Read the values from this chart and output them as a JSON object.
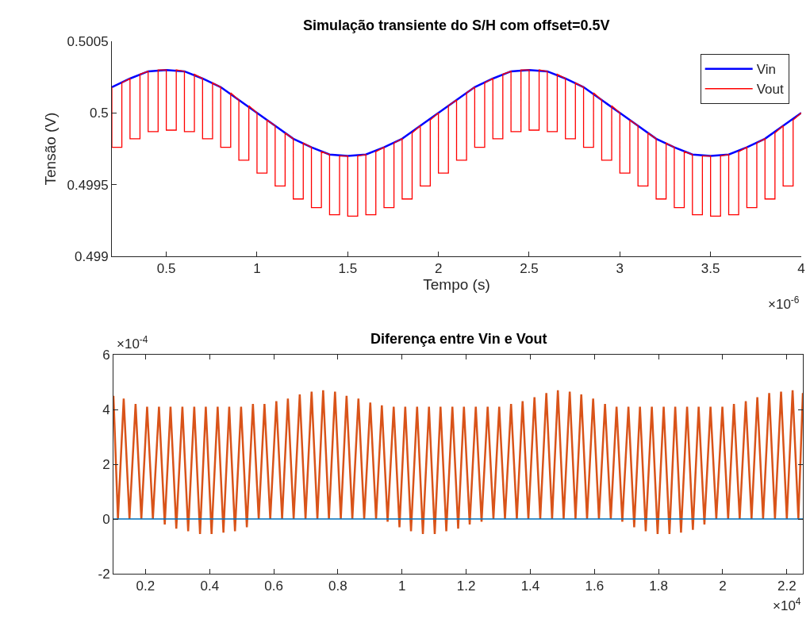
{
  "chart_data": [
    {
      "type": "line",
      "title": "Simulação transiente do S/H com offset=0.5V",
      "xlabel": "Tempo (s)",
      "ylabel": "Tensão (V)",
      "xlim": [
        0.2,
        4
      ],
      "xticks": [
        0.5,
        1,
        1.5,
        2,
        2.5,
        3,
        3.5,
        4
      ],
      "ylim": [
        0.499,
        0.5005
      ],
      "yticks": [
        0.499,
        0.4995,
        0.5,
        0.5005
      ],
      "legend": "top right",
      "annotations": [
        "×10$^{-6}$"
      ],
      "series": [
        {
          "name": "Vin",
          "color": "#0000ff",
          "x": [
            0.2,
            0.3,
            0.4,
            0.5,
            0.6,
            0.7,
            0.8,
            0.9,
            1.0,
            1.1,
            1.2,
            1.3,
            1.4,
            1.5,
            1.6,
            1.7,
            1.8,
            1.9,
            2.0,
            2.1,
            2.2,
            2.3,
            2.4,
            2.5,
            2.6,
            2.7,
            2.8,
            2.9,
            3.0,
            3.1,
            3.2,
            3.3,
            3.4,
            3.5,
            3.6,
            3.7,
            3.8,
            3.9,
            4.0
          ],
          "values": [
            0.50018,
            0.50024,
            0.50029,
            0.5003,
            0.50029,
            0.50024,
            0.50018,
            0.50009,
            0.5,
            0.49991,
            0.49982,
            0.49976,
            0.49971,
            0.4997,
            0.49971,
            0.49976,
            0.49982,
            0.49991,
            0.5,
            0.50009,
            0.50018,
            0.50024,
            0.50029,
            0.5003,
            0.50029,
            0.50024,
            0.50018,
            0.50009,
            0.5,
            0.49991,
            0.49982,
            0.49976,
            0.49971,
            0.4997,
            0.49971,
            0.49976,
            0.49982,
            0.49991,
            0.5
          ]
        },
        {
          "name": "Vout",
          "color": "#ff0000",
          "x": [
            0.2,
            0.2,
            0.255,
            0.255,
            0.3,
            0.3,
            0.355,
            0.355,
            0.4,
            0.4,
            0.455,
            0.455,
            0.5,
            0.5,
            0.555,
            0.555,
            0.6,
            0.6,
            0.655,
            0.655,
            0.7,
            0.7,
            0.755,
            0.755,
            0.8,
            0.8,
            0.855,
            0.855,
            0.9,
            0.9,
            0.955,
            0.955,
            1.0,
            1.0,
            1.055,
            1.055,
            1.1,
            1.1,
            1.155,
            1.155,
            1.2,
            1.2,
            1.255,
            1.255,
            1.3,
            1.3,
            1.355,
            1.355,
            1.4,
            1.4,
            1.455,
            1.455,
            1.5,
            1.5,
            1.555,
            1.555,
            1.6,
            1.6,
            1.655,
            1.655,
            1.7,
            1.7,
            1.755,
            1.755,
            1.8,
            1.8,
            1.855,
            1.855,
            1.9,
            1.9,
            1.955,
            1.955,
            2.0,
            2.0,
            2.055,
            2.055,
            2.1,
            2.1,
            2.155,
            2.155,
            2.2,
            2.2,
            2.255,
            2.255,
            2.3,
            2.3,
            2.355,
            2.355,
            2.4,
            2.4,
            2.455,
            2.455,
            2.5,
            2.5,
            2.555,
            2.555,
            2.6,
            2.6,
            2.655,
            2.655,
            2.7,
            2.7,
            2.755,
            2.755,
            2.8,
            2.8,
            2.855,
            2.855,
            2.9,
            2.9,
            2.955,
            2.955,
            3.0,
            3.0,
            3.055,
            3.055,
            3.1,
            3.1,
            3.155,
            3.155,
            3.2,
            3.2,
            3.255,
            3.255,
            3.3,
            3.3,
            3.355,
            3.355,
            3.4,
            3.4,
            3.455,
            3.455,
            3.5,
            3.5,
            3.555,
            3.555,
            3.6,
            3.6,
            3.655,
            3.655,
            3.7,
            3.7,
            3.755,
            3.755,
            3.8,
            3.8,
            3.855,
            3.855,
            3.9,
            3.9,
            3.955,
            3.955,
            4.0
          ],
          "values": [
            0.50018,
            0.49976,
            0.49976,
            0.50021,
            0.50024,
            0.49982,
            0.49982,
            0.50027,
            0.50029,
            0.49987,
            0.49987,
            0.5003,
            0.5003,
            0.49988,
            0.49988,
            0.5003,
            0.50029,
            0.49987,
            0.49987,
            0.50027,
            0.50024,
            0.49982,
            0.49982,
            0.50021,
            0.50018,
            0.49976,
            0.49976,
            0.50014,
            0.50009,
            0.49967,
            0.49967,
            0.50005,
            0.5,
            0.49958,
            0.49958,
            0.49995,
            0.49991,
            0.49949,
            0.49949,
            0.49986,
            0.49982,
            0.4994,
            0.4994,
            0.49979,
            0.49976,
            0.49934,
            0.49934,
            0.49973,
            0.49971,
            0.49929,
            0.49929,
            0.4997,
            0.4997,
            0.49928,
            0.49928,
            0.4997,
            0.49971,
            0.49929,
            0.49929,
            0.49973,
            0.49976,
            0.49934,
            0.49934,
            0.49979,
            0.49982,
            0.4994,
            0.4994,
            0.49986,
            0.49991,
            0.49949,
            0.49949,
            0.49995,
            0.5,
            0.49958,
            0.49958,
            0.50005,
            0.50009,
            0.49967,
            0.49967,
            0.50014,
            0.50018,
            0.49976,
            0.49976,
            0.50021,
            0.50024,
            0.49982,
            0.49982,
            0.50027,
            0.50029,
            0.49987,
            0.49987,
            0.5003,
            0.5003,
            0.49988,
            0.49988,
            0.5003,
            0.50029,
            0.49987,
            0.49987,
            0.50027,
            0.50024,
            0.49982,
            0.49982,
            0.50021,
            0.50018,
            0.49976,
            0.49976,
            0.50014,
            0.50009,
            0.49967,
            0.49967,
            0.50005,
            0.5,
            0.49958,
            0.49958,
            0.49995,
            0.49991,
            0.49949,
            0.49949,
            0.49986,
            0.49982,
            0.4994,
            0.4994,
            0.49979,
            0.49976,
            0.49934,
            0.49934,
            0.49973,
            0.49971,
            0.49929,
            0.49929,
            0.4997,
            0.4997,
            0.49928,
            0.49928,
            0.4997,
            0.49971,
            0.49929,
            0.49929,
            0.49973,
            0.49976,
            0.49934,
            0.49934,
            0.49979,
            0.49982,
            0.4994,
            0.4994,
            0.49986,
            0.49991,
            0.49949,
            0.49949,
            0.49995,
            0.5
          ]
        }
      ]
    },
    {
      "type": "line",
      "title": "Diferença entre Vin e Vout",
      "xlim": [
        0.1,
        2.25
      ],
      "xticks": [
        0.2,
        0.4,
        0.6,
        0.8,
        1,
        1.2,
        1.4,
        1.6,
        1.8,
        2,
        2.2
      ],
      "ylim": [
        -2,
        6
      ],
      "yticks": [
        -2,
        0,
        2,
        4,
        6
      ],
      "annotations": [
        "×10$^{-4}$",
        "×10$^{4}$"
      ],
      "series": [
        {
          "color": "#d95319",
          "x": [
            0.1,
            0.114,
            0.132,
            0.15,
            0.169,
            0.187,
            0.205,
            0.223,
            0.242,
            0.26,
            0.278,
            0.296,
            0.315,
            0.333,
            0.352,
            0.37,
            0.388,
            0.406,
            0.425,
            0.443,
            0.461,
            0.479,
            0.498,
            0.516,
            0.535,
            0.553,
            0.571,
            0.589,
            0.608,
            0.626,
            0.644,
            0.662,
            0.681,
            0.699,
            0.718,
            0.736,
            0.754,
            0.772,
            0.791,
            0.809,
            0.827,
            0.845,
            0.864,
            0.882,
            0.901,
            0.919,
            0.937,
            0.955,
            0.974,
            0.992,
            1.01,
            1.028,
            1.047,
            1.065,
            1.084,
            1.102,
            1.12,
            1.138,
            1.157,
            1.175,
            1.193,
            1.211,
            1.23,
            1.248,
            1.267,
            1.285,
            1.303,
            1.321,
            1.34,
            1.358,
            1.376,
            1.394,
            1.413,
            1.431,
            1.45,
            1.468,
            1.486,
            1.504,
            1.523,
            1.541,
            1.559,
            1.577,
            1.596,
            1.614,
            1.633,
            1.651,
            1.669,
            1.687,
            1.706,
            1.724,
            1.742,
            1.76,
            1.779,
            1.797,
            1.816,
            1.834,
            1.852,
            1.87,
            1.889,
            1.907,
            1.925,
            1.943,
            1.962,
            1.98,
            1.999,
            2.017,
            2.035,
            2.053,
            2.072,
            2.09,
            2.108,
            2.126,
            2.145,
            2.163,
            2.182,
            2.2,
            2.218,
            2.236,
            2.25
          ],
          "values": [
            4.5,
            0,
            4.4,
            0,
            4.2,
            0,
            4.1,
            0,
            4.1,
            -0.2,
            4.1,
            -0.35,
            4.1,
            -0.45,
            4.1,
            -0.55,
            4.1,
            -0.55,
            4.1,
            -0.5,
            4.1,
            -0.45,
            4.1,
            -0.3,
            4.2,
            0,
            4.2,
            0,
            4.3,
            0,
            4.4,
            0,
            4.55,
            0,
            4.65,
            0,
            4.7,
            0,
            4.65,
            0,
            4.5,
            0,
            4.4,
            0,
            4.25,
            0,
            4.15,
            -0.1,
            4.1,
            -0.3,
            4.1,
            -0.45,
            4.1,
            -0.55,
            4.1,
            -0.55,
            4.1,
            -0.45,
            4.1,
            -0.35,
            4.1,
            -0.2,
            4.1,
            -0.1,
            4.1,
            0,
            4.1,
            0,
            4.2,
            0,
            4.3,
            0,
            4.45,
            0,
            4.6,
            0,
            4.7,
            0,
            4.65,
            0,
            4.55,
            0,
            4.4,
            0,
            4.2,
            0,
            4.1,
            -0.1,
            4.1,
            -0.3,
            4.1,
            -0.45,
            4.1,
            -0.55,
            4.1,
            -0.55,
            4.1,
            -0.5,
            4.1,
            -0.4,
            4.1,
            -0.2,
            4.1,
            0,
            4.1,
            0,
            4.2,
            0,
            4.3,
            0,
            4.45,
            0,
            4.6,
            0,
            4.65,
            0,
            4.7,
            0,
            4.6
          ]
        },
        {
          "color": "#0072bd",
          "x": [
            0.1,
            2.25
          ],
          "values": [
            0,
            0
          ]
        }
      ]
    }
  ]
}
